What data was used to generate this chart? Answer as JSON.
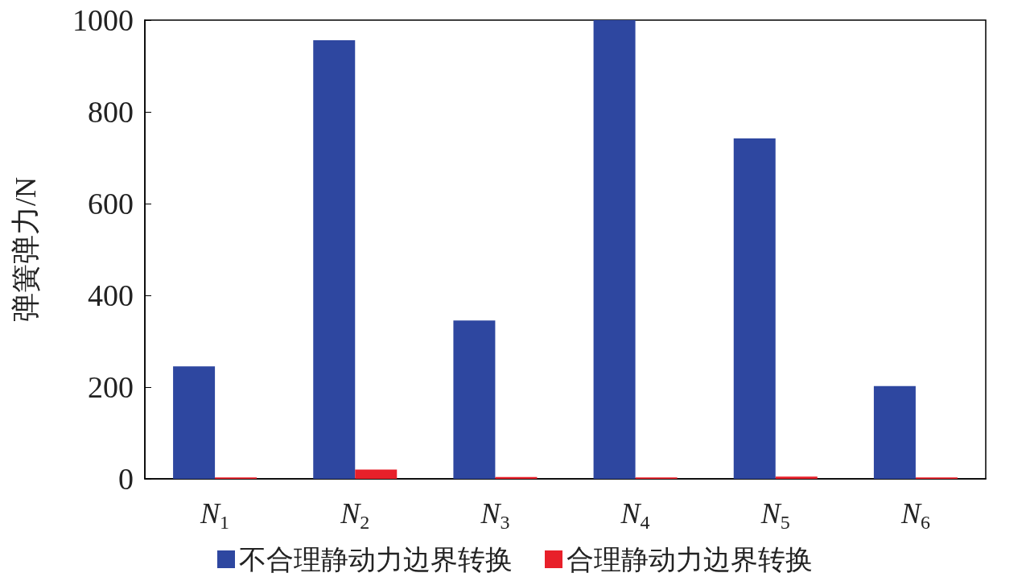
{
  "chart_data": {
    "type": "bar",
    "ylabel": "弹簧弹力/N",
    "categories": [
      "N$_{1}$",
      "N$_{2}$",
      "N$_{3}$",
      "N$_{4}$",
      "N$_{5}$",
      "N$_{6}$"
    ],
    "series": [
      {
        "name": "不合理静动力边界转换",
        "color": "#2e47a0",
        "values": [
          245,
          956,
          345,
          1000,
          742,
          202
        ]
      },
      {
        "name": "合理静动力边界转换",
        "color": "#e8202a",
        "values": [
          3,
          20,
          4,
          3,
          5,
          3
        ]
      }
    ],
    "ylim": [
      0,
      1000
    ],
    "yticks": [
      0,
      200,
      400,
      600,
      800,
      1000
    ],
    "grid": false,
    "legend": "bottom"
  }
}
